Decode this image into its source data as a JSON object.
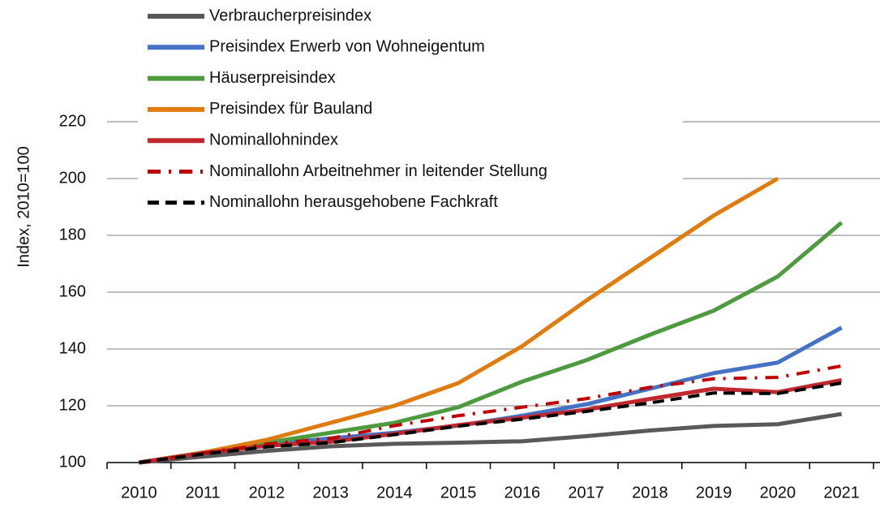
{
  "chart_data": {
    "type": "line",
    "y_label": "Index, 2010=100",
    "categories": [
      "2010",
      "2011",
      "2012",
      "2013",
      "2014",
      "2015",
      "2016",
      "2017",
      "2018",
      "2019",
      "2020",
      "2021"
    ],
    "ylim": [
      100,
      220
    ],
    "yticks": [
      100,
      120,
      140,
      160,
      180,
      200,
      220
    ],
    "grid": true,
    "legend": "top-left",
    "series": [
      {
        "name": "Verbraucherpreisindex",
        "color": "#595959",
        "style": "solid",
        "values": [
          100,
          102.1,
          104.1,
          105.7,
          106.6,
          107.0,
          107.5,
          109.3,
          111.3,
          112.9,
          113.5,
          117.1
        ]
      },
      {
        "name": "Preisindex Erwerb von Wohneigentum",
        "color": "#4472c4",
        "style": "solid",
        "values": [
          100,
          103.5,
          106.5,
          108.5,
          110.5,
          113,
          116.5,
          120.5,
          126,
          131.5,
          135.2,
          147.5
        ]
      },
      {
        "name": "Häuserpreisindex",
        "color": "#4e9a3f",
        "style": "solid",
        "values": [
          100,
          103.5,
          107,
          110.5,
          114,
          119.5,
          128.5,
          136,
          145,
          153.5,
          165.5,
          184.5
        ]
      },
      {
        "name": "Preisindex für Bauland",
        "color": "#e07b10",
        "style": "solid",
        "values": [
          100,
          103.5,
          108,
          114,
          120,
          128,
          141,
          157,
          172,
          187,
          200,
          null
        ]
      },
      {
        "name": "Nominallohnindex",
        "color": "#c0282d",
        "style": "solid",
        "values": [
          100,
          103.3,
          105.9,
          107.3,
          110.1,
          113.2,
          115.8,
          118.6,
          122.4,
          126,
          124.8,
          129
        ]
      },
      {
        "name": "Nominallohn  Arbeitnehmer in leitender Stellung",
        "color": "#c00000",
        "style": "dashdot",
        "values": [
          100,
          103.3,
          106.5,
          108.5,
          113,
          116.5,
          119.5,
          122.5,
          126.5,
          129.5,
          130,
          134
        ]
      },
      {
        "name": "Nominallohn  herausgehobene Fachkraft",
        "color": "#000000",
        "style": "dash",
        "values": [
          100,
          103,
          105.5,
          107,
          109.8,
          112.8,
          115.3,
          118,
          121,
          124.5,
          124.3,
          128
        ]
      }
    ]
  }
}
